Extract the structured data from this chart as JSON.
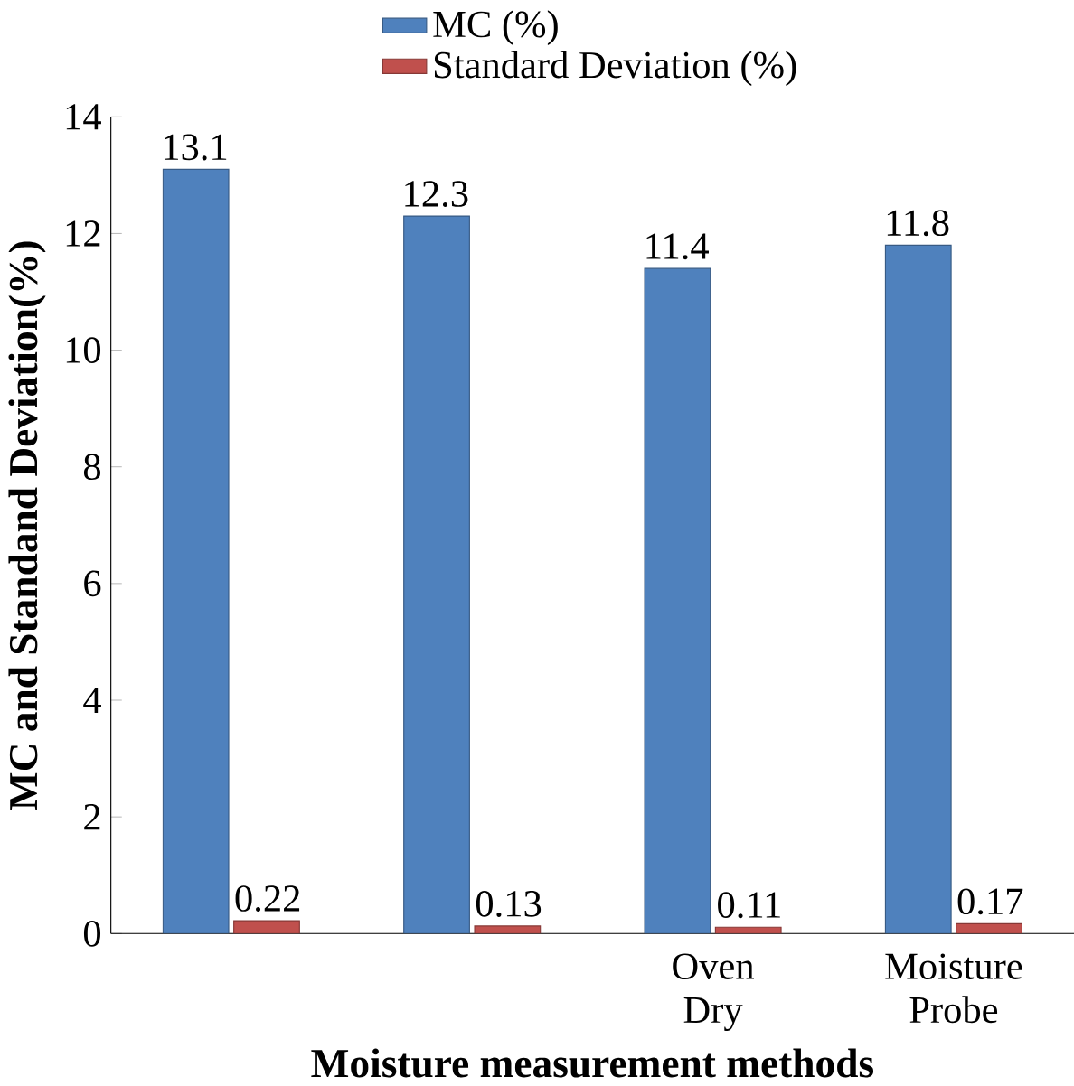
{
  "chart_data": {
    "type": "bar",
    "xlabel": "Moisture measurement methods",
    "ylabel": "MC and Standand Deviation(%)",
    "categories": [
      null,
      null,
      "Oven Dry",
      "Moisture Probe"
    ],
    "series": [
      {
        "name": "MC (%)",
        "color": "#4f81bd",
        "values": [
          13.1,
          12.3,
          11.4,
          11.8
        ],
        "value_labels": [
          "13.1",
          "12.3",
          "11.4",
          "11.8"
        ]
      },
      {
        "name": "Standard Deviation (%)",
        "color": "#c0504d",
        "values": [
          0.22,
          0.13,
          0.11,
          0.17
        ],
        "value_labels": [
          "0.22",
          "0.13",
          "0.11",
          "0.17"
        ]
      }
    ],
    "ylim": [
      0,
      14
    ],
    "yticks": [
      0,
      2,
      4,
      6,
      8,
      10,
      12,
      14
    ],
    "grid": false,
    "legend": "top"
  }
}
